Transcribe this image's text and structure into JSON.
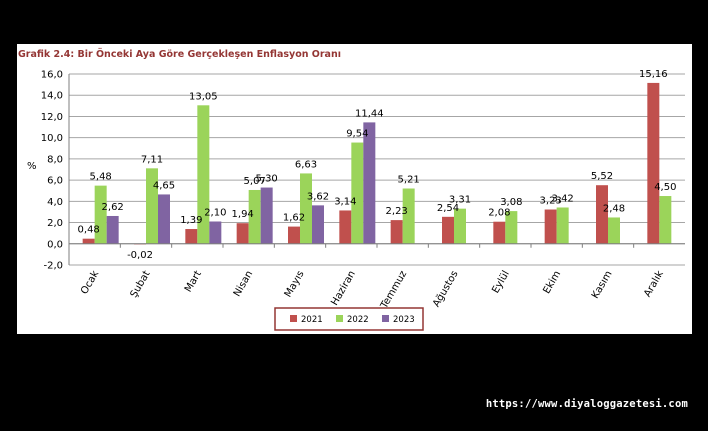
{
  "chart_data": {
    "type": "bar",
    "title": "Grafik 2.4: Bir Önceki Aya Göre Gerçekleşen Enflasyon Oranı",
    "ylabel": "%",
    "ylim": [
      -2.0,
      16.0
    ],
    "yticks": [
      "-2,0",
      "0,0",
      "2,0",
      "4,0",
      "6,0",
      "8,0",
      "10,0",
      "12,0",
      "14,0",
      "16,0"
    ],
    "categories": [
      "Ocak",
      "Şubat",
      "Mart",
      "Nisan",
      "Mayıs",
      "Haziran",
      "Temmuz",
      "Ağustos",
      "Eylül",
      "Ekim",
      "Kasım",
      "Aralık"
    ],
    "series": [
      {
        "name": "2021",
        "color": "#c0504d",
        "values": [
          0.48,
          -0.02,
          1.39,
          1.94,
          1.62,
          3.14,
          2.23,
          2.54,
          2.08,
          3.23,
          5.52,
          15.16
        ],
        "labels": [
          "0,48",
          "-0,02",
          "1,39",
          "1,94",
          "1,62",
          "3,14",
          "2,23",
          "2,54",
          "2,08",
          "3,23",
          "5,52",
          "15,16"
        ]
      },
      {
        "name": "2022",
        "color": "#9bd45a",
        "values": [
          5.48,
          7.11,
          13.05,
          5.07,
          6.63,
          9.54,
          5.21,
          3.31,
          3.08,
          3.42,
          2.48,
          4.5
        ],
        "labels": [
          "5,48",
          "7,11",
          "13,05",
          "5,07",
          "6,63",
          "9,54",
          "5,21",
          "3,31",
          "3,08",
          "3,42",
          "2,48",
          "4,50"
        ]
      },
      {
        "name": "2023",
        "color": "#8064a2",
        "values": [
          2.62,
          4.65,
          2.1,
          5.3,
          3.62,
          11.44,
          null,
          null,
          null,
          null,
          null,
          null
        ],
        "labels": [
          "2,62",
          "4,65",
          "2,10",
          "5,30",
          "3,62",
          "11,44",
          "",
          "",
          "",
          "",
          "",
          ""
        ]
      }
    ],
    "grid": true,
    "legend": "bottom"
  },
  "watermark": "https://www.diyaloggazetesi.com"
}
